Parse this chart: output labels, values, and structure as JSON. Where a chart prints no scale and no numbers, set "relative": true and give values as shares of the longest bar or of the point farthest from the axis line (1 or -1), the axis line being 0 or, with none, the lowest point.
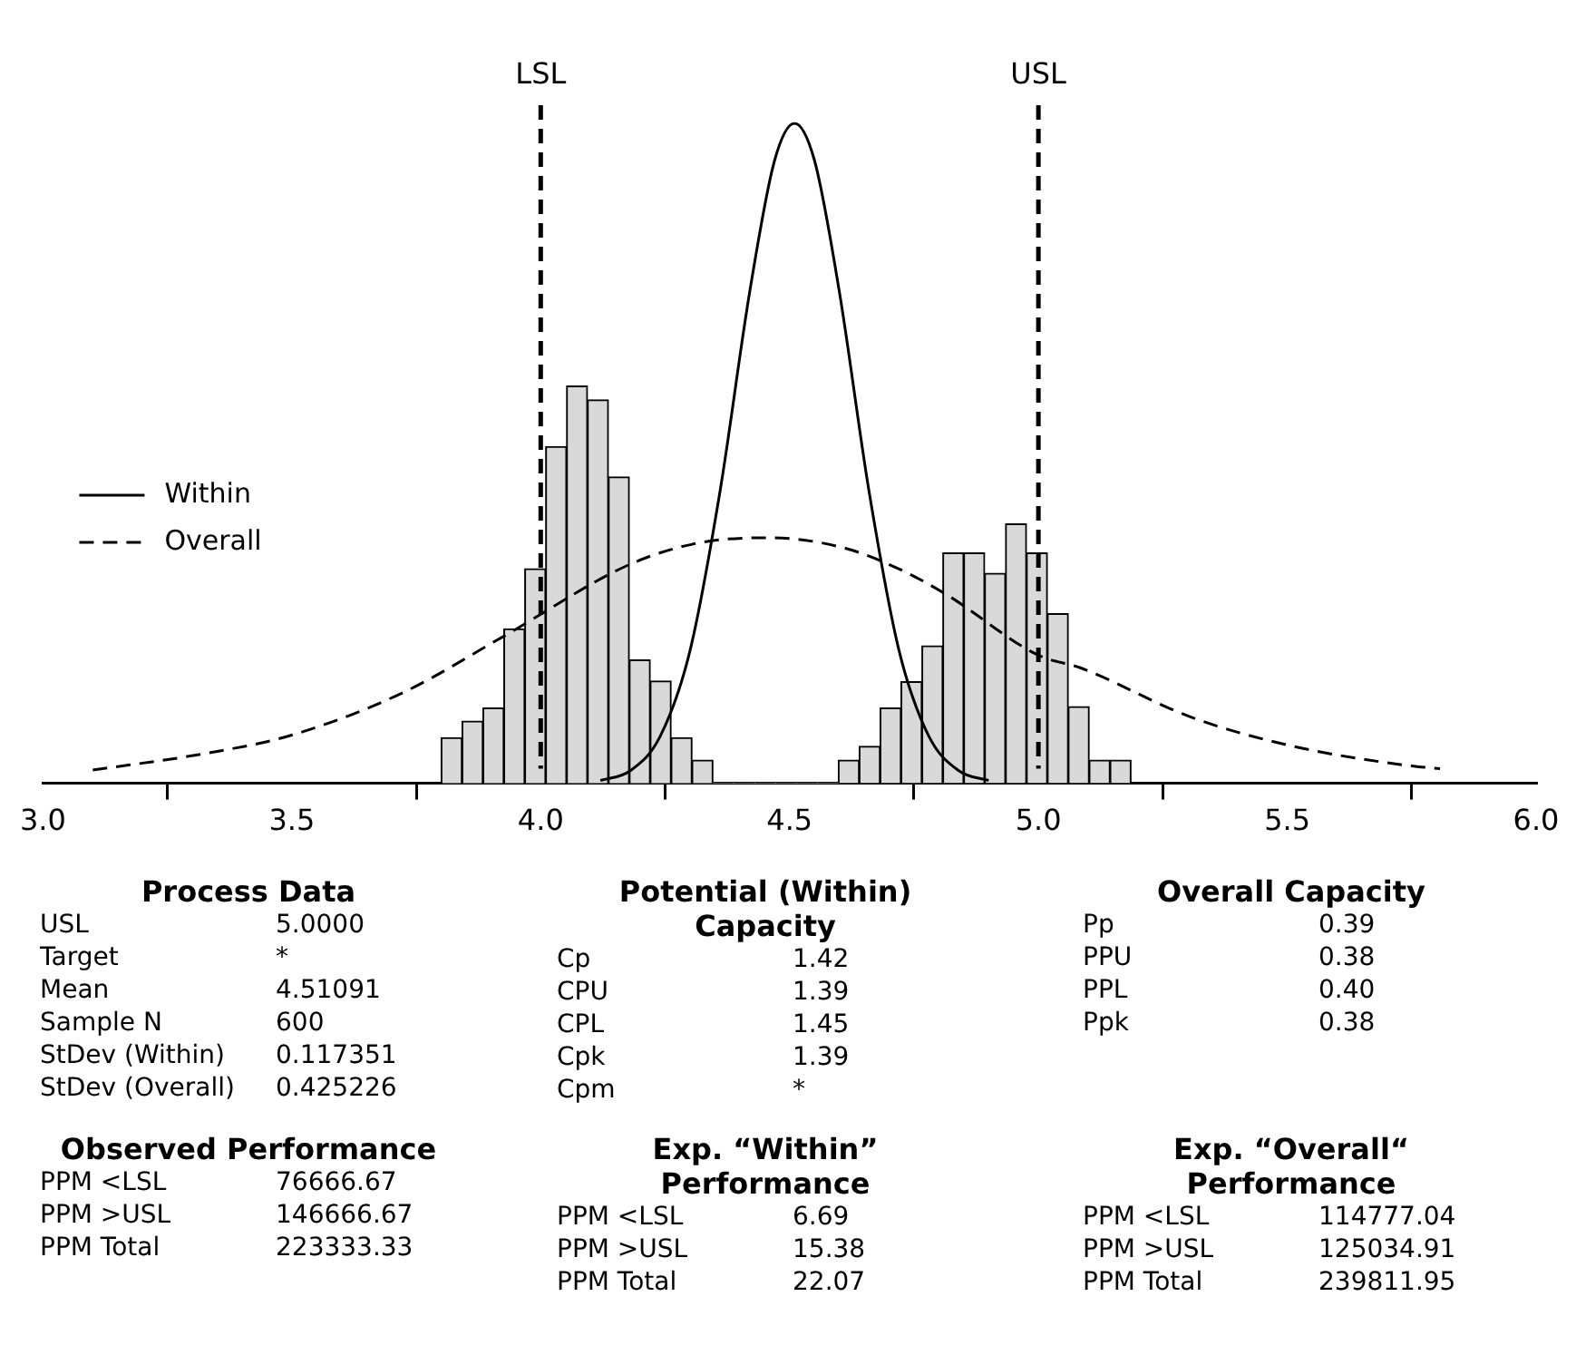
{
  "chart_data": [
    {
      "type": "histogram",
      "relative": true,
      "xlim": [
        3.0,
        6.0
      ],
      "xticks": [
        {
          "value": 3.0,
          "label": "3.0"
        },
        {
          "value": 3.5,
          "label": "3.5"
        },
        {
          "value": 4.0,
          "label": "4.0"
        },
        {
          "value": 4.5,
          "label": "4.5"
        },
        {
          "value": 5.0,
          "label": "5.0"
        },
        {
          "value": 5.5,
          "label": "5.5"
        },
        {
          "value": 6.0,
          "label": "6.0"
        }
      ],
      "grid": false,
      "legend": "left",
      "marker": "none",
      "series": [
        {
          "type": "histogram",
          "color": "#d9d9d9",
          "bins": [
            3.8,
            3.842,
            3.884,
            3.926,
            3.968,
            4.01,
            4.052,
            4.094,
            4.136,
            4.178,
            4.22,
            4.262,
            4.304,
            4.346,
            4.388,
            4.43,
            4.472,
            4.514,
            4.556,
            4.598,
            4.64,
            4.682,
            4.724,
            4.766,
            4.808,
            4.85,
            4.892,
            4.934,
            4.976,
            5.018,
            5.06,
            5.102,
            5.144,
            5.186
          ],
          "values": [
            0.069,
            0.094,
            0.114,
            0.234,
            0.325,
            0.51,
            0.602,
            0.581,
            0.464,
            0.187,
            0.155,
            0.069,
            0.035,
            0,
            0,
            0,
            0,
            0,
            0,
            0.035,
            0.056,
            0.114,
            0.154,
            0.208,
            0.349,
            0.349,
            0.318,
            0.393,
            0.349,
            0.257,
            0.116,
            0.035,
            0.035
          ]
        },
        {
          "type": "line",
          "name": "Within",
          "color": "#000000",
          "line_style": "solid",
          "x": [
            4.12,
            4.18,
            4.24,
            4.3,
            4.36,
            4.42,
            4.47,
            4.51,
            4.55,
            4.6,
            4.66,
            4.72,
            4.78,
            4.84,
            4.9
          ],
          "values": [
            0.004,
            0.019,
            0.071,
            0.201,
            0.441,
            0.745,
            0.944,
            1,
            0.944,
            0.745,
            0.441,
            0.201,
            0.071,
            0.019,
            0.004
          ]
        },
        {
          "type": "line",
          "name": "Overall",
          "color": "#000000",
          "line_style": "dashed",
          "x": [
            3.1,
            3.325,
            3.5,
            3.725,
            3.924,
            4.183,
            4.323,
            4.462,
            4.612,
            4.722,
            4.813,
            5.0,
            5.084,
            5.304,
            5.5,
            5.73,
            5.807
          ],
          "values": [
            0.02,
            0.045,
            0.073,
            0.138,
            0.222,
            0.333,
            0.365,
            0.372,
            0.356,
            0.324,
            0.287,
            0.194,
            0.175,
            0.101,
            0.058,
            0.028,
            0.022
          ]
        }
      ],
      "ref_lines": [
        {
          "axis": "x",
          "value": 4.0,
          "label": "LSL",
          "line_style": "dashed",
          "color": "#000000"
        },
        {
          "axis": "x",
          "value": 5.0,
          "label": "USL",
          "line_style": "dashed",
          "color": "#000000"
        }
      ]
    },
    {
      "type": "other",
      "title": "Process Data",
      "annotations": [
        "USL",
        "5.0000",
        "Target",
        "*",
        "Mean",
        "4.51091",
        "Sample N",
        "600",
        "StDev (Within)",
        "0.117351",
        "StDev (Overall)",
        "0.425226"
      ]
    },
    {
      "type": "other",
      "title": "Potential (Within) Capacity",
      "annotations": [
        "Cp",
        "1.42",
        "CPU",
        "1.39",
        "CPL",
        "1.45",
        "Cpk",
        "1.39",
        "Cpm",
        "*"
      ]
    },
    {
      "type": "other",
      "title": "Overall Capacity",
      "annotations": [
        "Pp",
        "0.39",
        "PPU",
        "0.38",
        "PPL",
        "0.40",
        "Ppk",
        "0.38"
      ]
    },
    {
      "type": "other",
      "title": "Observed Performance",
      "annotations": [
        "PPM <LSL",
        "76666.67",
        "PPM >USL",
        "146666.67",
        "PPM Total",
        "223333.33"
      ]
    },
    {
      "type": "other",
      "title": "Exp. “Within” Performance",
      "annotations": [
        "PPM <LSL",
        "6.69",
        "PPM >USL",
        "15.38",
        "PPM Total",
        "22.07"
      ]
    },
    {
      "type": "other",
      "title": "Exp. “Overall“ Performance",
      "annotations": [
        "PPM <LSL",
        "114777.04",
        "PPM >USL",
        "125034.91",
        "PPM Total",
        "239811.95"
      ]
    }
  ]
}
